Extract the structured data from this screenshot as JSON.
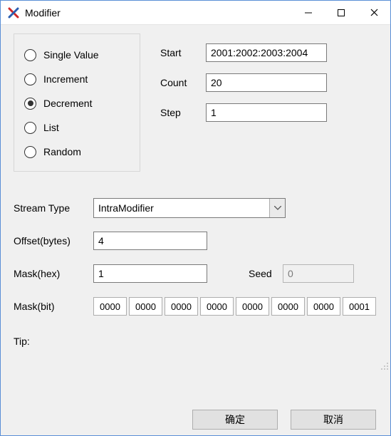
{
  "window": {
    "title": "Modifier",
    "accent_color": "#5a8fd6",
    "icon_colors": {
      "stroke1": "#d02828",
      "stroke2": "#2a5db0"
    }
  },
  "radio": {
    "items": [
      {
        "label": "Single Value",
        "checked": false
      },
      {
        "label": "Increment",
        "checked": false
      },
      {
        "label": "Decrement",
        "checked": true
      },
      {
        "label": "List",
        "checked": false
      },
      {
        "label": "Random",
        "checked": false
      }
    ]
  },
  "params": {
    "start_label": "Start",
    "start_value": "2001:2002:2003:2004",
    "count_label": "Count",
    "count_value": "20",
    "step_label": "Step",
    "step_value": "1"
  },
  "fields": {
    "stream_type_label": "Stream Type",
    "stream_type_value": "IntraModifier",
    "offset_label": "Offset(bytes)",
    "offset_value": "4",
    "mask_hex_label": "Mask(hex)",
    "mask_hex_value": "1",
    "seed_label": "Seed",
    "seed_value": "0",
    "mask_bit_label": "Mask(bit)",
    "mask_bits": [
      "0000",
      "0000",
      "0000",
      "0000",
      "0000",
      "0000",
      "0000",
      "0001"
    ],
    "tip_label": "Tip:"
  },
  "buttons": {
    "ok": "确定",
    "cancel": "取消"
  }
}
